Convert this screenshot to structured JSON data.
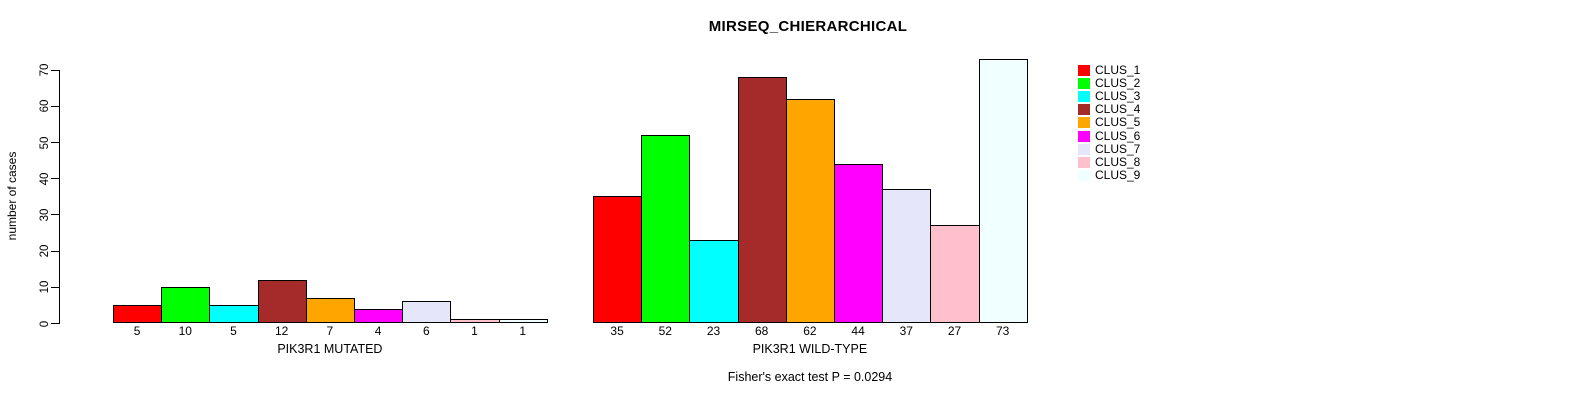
{
  "chart_data": {
    "type": "bar",
    "title": "MIRSEQ_CHIERARCHICAL",
    "ylabel": "number of cases",
    "ylim": [
      0,
      70
    ],
    "yticks": [
      0,
      10,
      20,
      30,
      40,
      50,
      60,
      70
    ],
    "grid": false,
    "legend_position": "right",
    "series": [
      {
        "label": "CLUS_1",
        "color": "#FF0000"
      },
      {
        "label": "CLUS_2",
        "color": "#00FF00"
      },
      {
        "label": "CLUS_3",
        "color": "#00FFFF"
      },
      {
        "label": "CLUS_4",
        "color": "#A52A2A"
      },
      {
        "label": "CLUS_5",
        "color": "#FFA500"
      },
      {
        "label": "CLUS_6",
        "color": "#FF00FF"
      },
      {
        "label": "CLUS_7",
        "color": "#E6E6FA"
      },
      {
        "label": "CLUS_8",
        "color": "#FFC0CB"
      },
      {
        "label": "CLUS_9",
        "color": "#F0FFFF"
      }
    ],
    "groups": [
      {
        "xlabel": "PIK3R1 MUTATED",
        "values": [
          5,
          10,
          5,
          12,
          7,
          4,
          6,
          1,
          1
        ]
      },
      {
        "xlabel": "PIK3R1 WILD-TYPE",
        "values": [
          35,
          52,
          23,
          68,
          62,
          44,
          37,
          27,
          73
        ]
      }
    ],
    "annotation": "Fisher's exact test P = 0.0294",
    "axis_color": "#000000",
    "bar_border_color": "#000000"
  }
}
